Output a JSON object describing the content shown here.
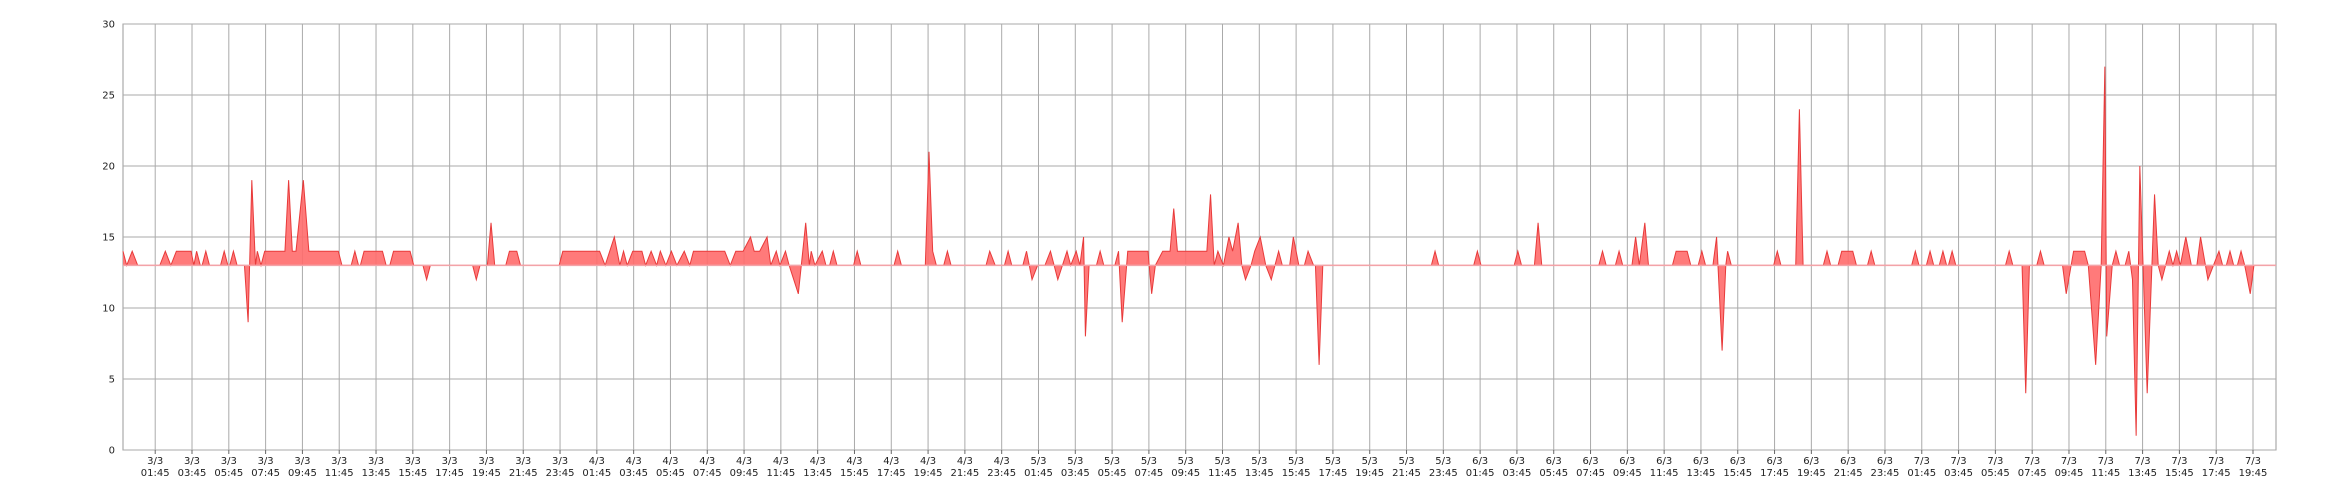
{
  "chart_data": {
    "type": "area",
    "baseline": 13,
    "fill": "#ff6b6b",
    "line_color": "#e83a3a",
    "baseline_color": "#f3a3a8",
    "grid": true,
    "xlim": [
      0,
      117
    ],
    "ylim": [
      0,
      30
    ],
    "yticks": [
      0,
      5,
      10,
      15,
      20,
      25,
      30
    ],
    "xticks": [
      {
        "value": 1.75,
        "label": "3/3 01:45"
      },
      {
        "value": 3.75,
        "label": "3/3 03:45"
      },
      {
        "value": 5.75,
        "label": "3/3 05:45"
      },
      {
        "value": 7.75,
        "label": "3/3 07:45"
      },
      {
        "value": 9.75,
        "label": "3/3 09:45"
      },
      {
        "value": 11.75,
        "label": "3/3 11:45"
      },
      {
        "value": 13.75,
        "label": "3/3 13:45"
      },
      {
        "value": 15.75,
        "label": "3/3 15:45"
      },
      {
        "value": 17.75,
        "label": "3/3 17:45"
      },
      {
        "value": 19.75,
        "label": "3/3 19:45"
      },
      {
        "value": 21.75,
        "label": "3/3 21:45"
      },
      {
        "value": 23.75,
        "label": "3/3 23:45"
      },
      {
        "value": 25.75,
        "label": "4/3 01:45"
      },
      {
        "value": 27.75,
        "label": "4/3 03:45"
      },
      {
        "value": 29.75,
        "label": "4/3 05:45"
      },
      {
        "value": 31.75,
        "label": "4/3 07:45"
      },
      {
        "value": 33.75,
        "label": "4/3 09:45"
      },
      {
        "value": 35.75,
        "label": "4/3 11:45"
      },
      {
        "value": 37.75,
        "label": "4/3 13:45"
      },
      {
        "value": 39.75,
        "label": "4/3 15:45"
      },
      {
        "value": 41.75,
        "label": "4/3 17:45"
      },
      {
        "value": 43.75,
        "label": "4/3 19:45"
      },
      {
        "value": 45.75,
        "label": "4/3 21:45"
      },
      {
        "value": 47.75,
        "label": "4/3 23:45"
      },
      {
        "value": 49.75,
        "label": "5/3 01:45"
      },
      {
        "value": 51.75,
        "label": "5/3 03:45"
      },
      {
        "value": 53.75,
        "label": "5/3 05:45"
      },
      {
        "value": 55.75,
        "label": "5/3 07:45"
      },
      {
        "value": 57.75,
        "label": "5/3 09:45"
      },
      {
        "value": 59.75,
        "label": "5/3 11:45"
      },
      {
        "value": 61.75,
        "label": "5/3 13:45"
      },
      {
        "value": 63.75,
        "label": "5/3 15:45"
      },
      {
        "value": 65.75,
        "label": "5/3 17:45"
      },
      {
        "value": 67.75,
        "label": "5/3 19:45"
      },
      {
        "value": 69.75,
        "label": "5/3 21:45"
      },
      {
        "value": 71.75,
        "label": "5/3 23:45"
      },
      {
        "value": 73.75,
        "label": "6/3 01:45"
      },
      {
        "value": 75.75,
        "label": "6/3 03:45"
      },
      {
        "value": 77.75,
        "label": "6/3 05:45"
      },
      {
        "value": 79.75,
        "label": "6/3 07:45"
      },
      {
        "value": 81.75,
        "label": "6/3 09:45"
      },
      {
        "value": 83.75,
        "label": "6/3 11:45"
      },
      {
        "value": 85.75,
        "label": "6/3 13:45"
      },
      {
        "value": 87.75,
        "label": "6/3 15:45"
      },
      {
        "value": 89.75,
        "label": "6/3 17:45"
      },
      {
        "value": 91.75,
        "label": "6/3 19:45"
      },
      {
        "value": 93.75,
        "label": "6/3 21:45"
      },
      {
        "value": 95.75,
        "label": "6/3 23:45"
      },
      {
        "value": 97.75,
        "label": "7/3 01:45"
      },
      {
        "value": 99.75,
        "label": "7/3 03:45"
      },
      {
        "value": 101.75,
        "label": "7/3 05:45"
      },
      {
        "value": 103.75,
        "label": "7/3 07:45"
      },
      {
        "value": 105.75,
        "label": "7/3 09:45"
      },
      {
        "value": 107.75,
        "label": "7/3 11:45"
      },
      {
        "value": 109.75,
        "label": "7/3 13:45"
      },
      {
        "value": 111.75,
        "label": "7/3 15:45"
      },
      {
        "value": 113.75,
        "label": "7/3 17:45"
      },
      {
        "value": 115.75,
        "label": "7/3 19:45"
      }
    ],
    "x": [
      0,
      0.2,
      0.5,
      0.8,
      2.0,
      2.3,
      2.6,
      2.9,
      3.7,
      3.85,
      4.0,
      4.2,
      4.3,
      4.5,
      4.7,
      5.3,
      5.5,
      5.7,
      5.8,
      6.0,
      6.2,
      6.6,
      6.8,
      7.0,
      7.2,
      7.3,
      7.5,
      7.7,
      8.8,
      9.0,
      9.2,
      9.4,
      9.8,
      10.1,
      11.7,
      11.9,
      12.4,
      12.6,
      12.8,
      12.9,
      13.1,
      14.1,
      14.3,
      14.5,
      14.7,
      15.6,
      15.8,
      16.3,
      16.5,
      16.7,
      19.0,
      19.2,
      19.4,
      19.8,
      20.0,
      20.2,
      20.8,
      21.0,
      21.4,
      21.6,
      23.7,
      23.9,
      25.9,
      26.2,
      26.7,
      27.0,
      27.2,
      27.4,
      27.7,
      28.2,
      28.4,
      28.7,
      29.0,
      29.2,
      29.5,
      29.8,
      30.1,
      30.5,
      30.8,
      31.0,
      32.7,
      33.0,
      33.3,
      33.7,
      34.1,
      34.3,
      34.6,
      35.0,
      35.2,
      35.5,
      35.7,
      36.0,
      36.2,
      36.7,
      37.1,
      37.3,
      37.4,
      37.6,
      38.0,
      38.2,
      38.4,
      38.6,
      38.8,
      39.7,
      39.9,
      40.1,
      41.9,
      42.1,
      42.3,
      43.6,
      43.8,
      44.0,
      44.2,
      44.6,
      44.8,
      45.0,
      46.9,
      47.1,
      47.4,
      47.9,
      48.1,
      48.3,
      48.9,
      49.1,
      49.4,
      49.7,
      50.1,
      50.4,
      50.8,
      51.3,
      51.5,
      51.8,
      52.0,
      52.2,
      52.3,
      52.5,
      52.9,
      53.1,
      53.3,
      53.9,
      54.1,
      54.3,
      54.6,
      55.7,
      55.9,
      56.1,
      56.5,
      56.9,
      57.1,
      57.3,
      58.9,
      59.1,
      59.3,
      59.5,
      59.8,
      60.1,
      60.3,
      60.6,
      60.8,
      61.0,
      61.3,
      61.5,
      61.8,
      62.1,
      62.4,
      62.6,
      62.8,
      63.0,
      63.4,
      63.6,
      63.9,
      64.2,
      64.4,
      64.7,
      64.8,
      65.0,
      65.2,
      71.1,
      71.3,
      71.5,
      73.4,
      73.6,
      73.8,
      75.6,
      75.8,
      76.0,
      76.7,
      76.9,
      77.1,
      80.2,
      80.4,
      80.6,
      81.1,
      81.3,
      81.5,
      82.0,
      82.2,
      82.4,
      82.7,
      82.9,
      84.2,
      84.4,
      85.0,
      85.2,
      85.6,
      85.8,
      86.0,
      86.4,
      86.6,
      86.9,
      87.1,
      87.2,
      87.4,
      89.7,
      89.9,
      90.1,
      90.9,
      91.1,
      91.3,
      92.4,
      92.6,
      92.8,
      93.2,
      93.4,
      94.0,
      94.2,
      94.8,
      95.0,
      95.2,
      97.2,
      97.4,
      97.6,
      98.0,
      98.2,
      98.4,
      98.7,
      98.9,
      99.1,
      99.2,
      99.4,
      99.6,
      102.3,
      102.5,
      102.7,
      103.2,
      103.4,
      103.6,
      104.0,
      104.2,
      104.4,
      105.4,
      105.6,
      106.0,
      106.6,
      106.8,
      107.2,
      107.5,
      107.7,
      107.8,
      108.1,
      108.3,
      108.5,
      108.8,
      109.0,
      109.2,
      109.4,
      109.6,
      110.0,
      110.4,
      110.6,
      110.8,
      111.0,
      111.2,
      111.4,
      111.6,
      111.8,
      112.1,
      112.4,
      112.7,
      112.9,
      113.3,
      113.6,
      113.9,
      114.1,
      114.3,
      114.5,
      114.7,
      114.9,
      115.1,
      115.3,
      115.6,
      115.8,
      117
    ],
    "values": [
      14,
      13,
      14,
      13,
      13,
      14,
      13,
      14,
      14,
      13,
      14,
      13,
      13,
      14,
      13,
      13,
      14,
      13,
      13,
      14,
      13,
      13,
      9,
      19,
      13,
      14,
      13,
      14,
      14,
      19,
      14,
      14,
      19,
      14,
      14,
      13,
      13,
      14,
      13,
      13,
      14,
      14,
      13,
      13,
      14,
      14,
      13,
      13,
      12,
      13,
      13,
      12,
      13,
      13,
      16,
      13,
      13,
      14,
      14,
      13,
      13,
      14,
      14,
      13,
      15,
      13,
      14,
      13,
      14,
      14,
      13,
      14,
      13,
      14,
      13,
      14,
      13,
      14,
      13,
      14,
      14,
      13,
      14,
      14,
      15,
      14,
      14,
      15,
      13,
      14,
      13,
      14,
      13,
      11,
      16,
      13,
      14,
      13,
      14,
      13,
      13,
      14,
      13,
      13,
      14,
      13,
      13,
      14,
      13,
      13,
      21,
      14,
      13,
      13,
      14,
      13,
      13,
      14,
      13,
      13,
      14,
      13,
      13,
      14,
      12,
      13,
      13,
      14,
      12,
      14,
      13,
      14,
      13,
      15,
      8,
      13,
      13,
      14,
      13,
      13,
      14,
      9,
      14,
      14,
      11,
      13,
      14,
      14,
      17,
      14,
      14,
      18,
      13,
      14,
      13,
      15,
      14,
      16,
      13,
      12,
      13,
      14,
      15,
      13,
      12,
      13,
      14,
      13,
      13,
      15,
      13,
      13,
      14,
      13,
      13,
      6,
      13,
      13,
      14,
      13,
      13,
      14,
      13,
      13,
      14,
      13,
      13,
      16,
      13,
      13,
      14,
      13,
      13,
      14,
      13,
      13,
      15,
      13,
      16,
      13,
      13,
      14,
      14,
      13,
      13,
      14,
      13,
      13,
      15,
      7,
      13,
      14,
      13,
      13,
      14,
      13,
      13,
      24,
      13,
      13,
      14,
      13,
      13,
      14,
      14,
      13,
      13,
      14,
      13,
      13,
      14,
      13,
      13,
      14,
      13,
      13,
      14,
      13,
      13,
      14,
      13,
      13,
      14,
      13,
      13,
      4,
      13,
      13,
      14,
      13,
      13,
      11,
      14,
      14,
      13,
      6,
      13,
      27,
      8,
      13,
      14,
      13,
      13,
      14,
      12,
      1,
      20,
      4,
      18,
      13,
      12,
      13,
      14,
      13,
      14,
      13,
      15,
      13,
      13,
      15,
      12,
      13,
      14,
      13,
      13,
      14,
      13,
      13,
      14,
      13,
      11,
      13,
      13
    ]
  }
}
